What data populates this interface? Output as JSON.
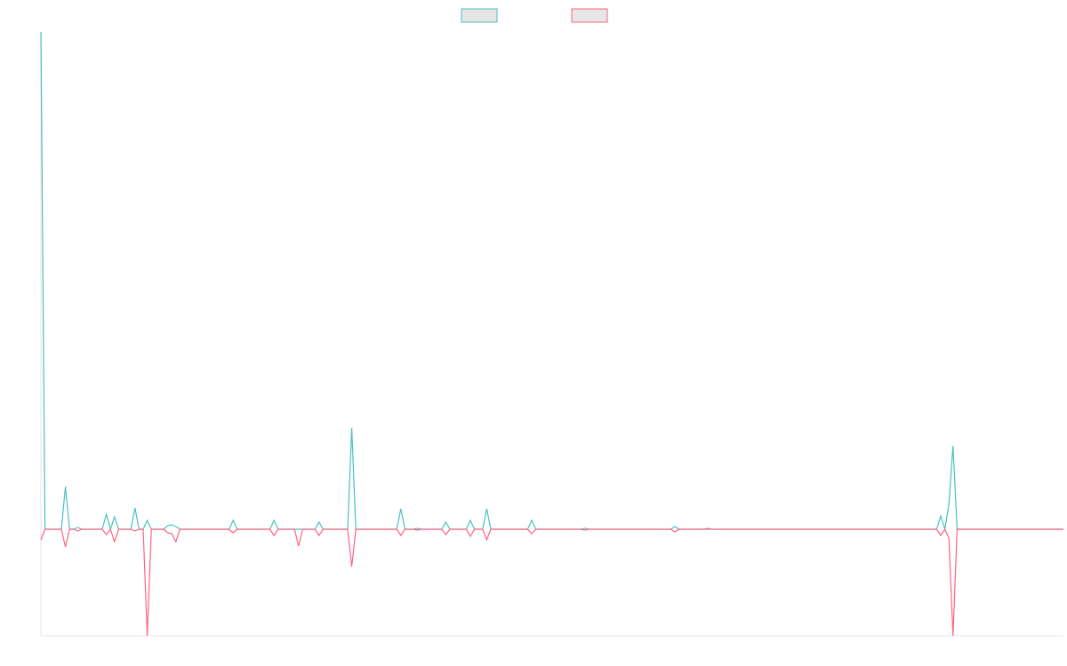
{
  "chart_data": {
    "type": "line",
    "x": [
      0,
      1,
      5,
      6,
      7,
      8,
      9,
      10,
      15,
      16,
      17,
      18,
      19,
      22,
      23,
      24,
      25,
      26,
      27,
      30,
      31,
      32,
      33,
      34,
      46,
      47,
      48,
      56,
      57,
      58,
      62,
      63,
      64,
      67,
      68,
      69,
      75,
      76,
      77,
      87,
      88,
      89,
      91,
      92,
      93,
      98,
      99,
      100,
      104,
      105,
      106,
      108,
      109,
      110,
      119,
      120,
      121,
      132,
      133,
      134,
      154,
      155,
      156,
      162,
      163,
      164,
      219,
      220,
      221,
      222,
      223,
      224,
      250
    ],
    "xlim": [
      0,
      250
    ],
    "ylim": [
      -120,
      560
    ],
    "legend": "top",
    "series": [
      {
        "color": "#4bc0c0",
        "values": [
          560,
          0,
          0,
          48,
          0,
          0,
          2,
          0,
          0,
          17,
          0,
          14,
          0,
          0,
          24,
          0,
          0,
          10,
          0,
          0,
          4,
          5,
          3,
          0,
          0,
          10,
          0,
          0,
          10,
          0,
          0,
          0,
          0,
          0,
          8,
          0,
          0,
          114,
          0,
          0,
          23,
          0,
          0,
          1,
          0,
          0,
          8,
          0,
          0,
          10,
          0,
          0,
          23,
          0,
          0,
          10,
          0,
          0,
          1,
          0,
          0,
          3,
          0,
          0,
          1,
          0,
          0,
          15,
          0,
          28,
          94,
          0,
          0
        ]
      },
      {
        "color": "#ff6384",
        "values": [
          -12,
          0,
          0,
          -20,
          0,
          0,
          -2,
          0,
          0,
          -6,
          0,
          -14,
          0,
          0,
          -2,
          0,
          0,
          -120,
          0,
          0,
          -4,
          -5,
          -14,
          0,
          0,
          -4,
          0,
          0,
          -7,
          0,
          0,
          -19,
          0,
          0,
          -7,
          0,
          0,
          -42,
          0,
          0,
          -7,
          0,
          0,
          -1,
          0,
          0,
          -6,
          0,
          0,
          -8,
          0,
          0,
          -12,
          0,
          0,
          -5,
          0,
          0,
          -1,
          0,
          0,
          -3,
          0,
          0,
          0,
          0,
          0,
          -7,
          0,
          -10,
          -120,
          0,
          0
        ]
      }
    ]
  }
}
